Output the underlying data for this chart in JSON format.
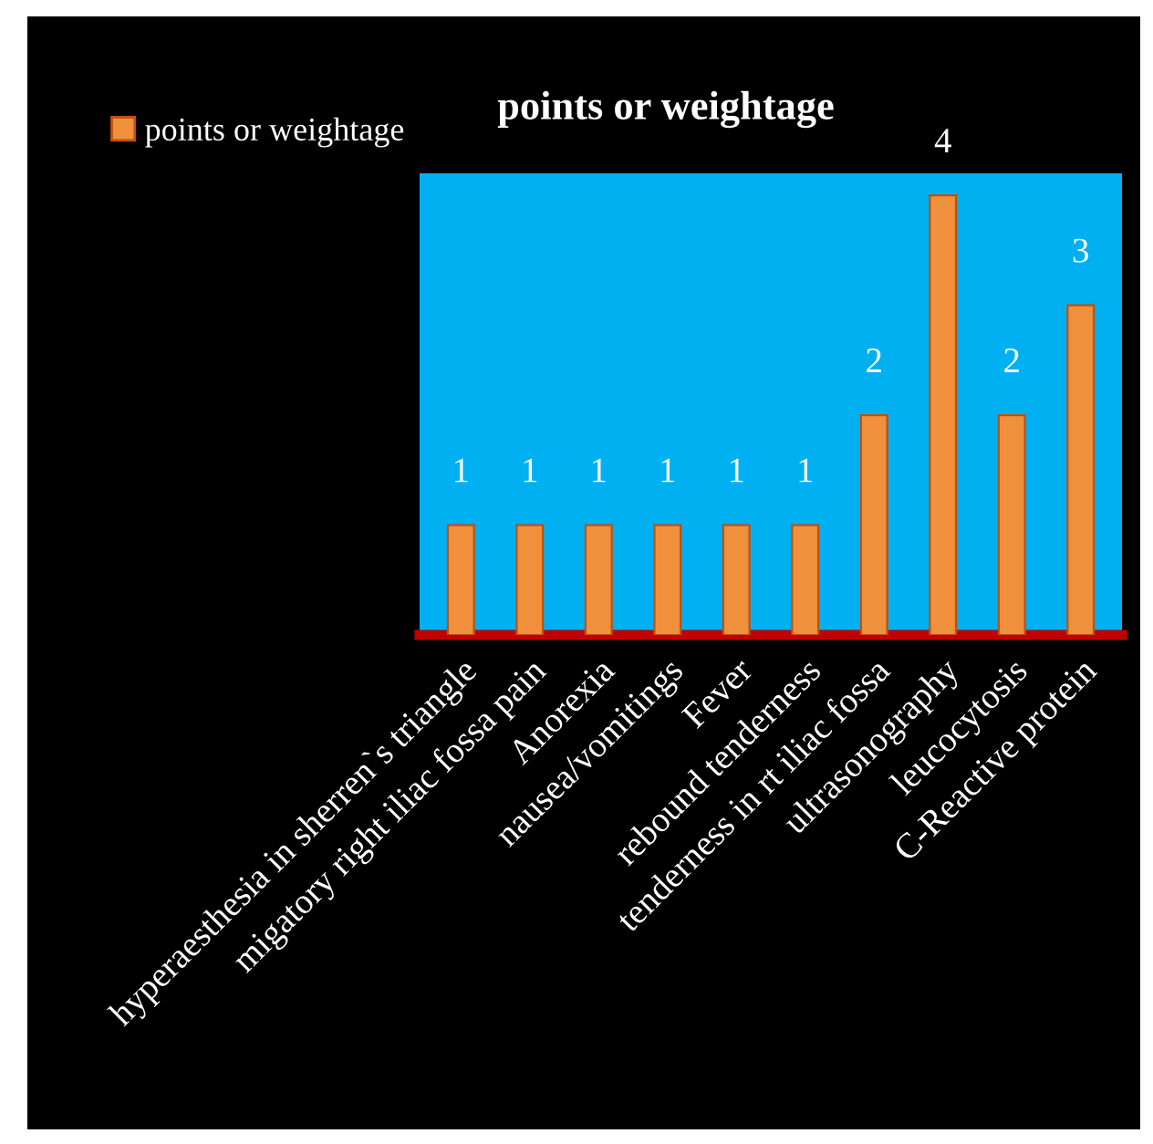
{
  "chart_data": {
    "type": "bar",
    "title": "points or weightage",
    "categories": [
      "hyperaesthesia in sherren`s triangle",
      "migatory right iliac fossa pain",
      "Anorexia",
      "nausea/vomitings",
      "Fever",
      "rebound tenderness",
      "tenderness in rt iliac fossa",
      "ultrasonography",
      "leucocytosis",
      "C-Reactive protein"
    ],
    "series": [
      {
        "name": "points or weightage",
        "color": "#f0903c",
        "values": [
          1,
          1,
          1,
          1,
          1,
          1,
          2,
          4,
          2,
          3
        ]
      }
    ],
    "data_labels": true,
    "legend": "top left",
    "grid": false
  }
}
